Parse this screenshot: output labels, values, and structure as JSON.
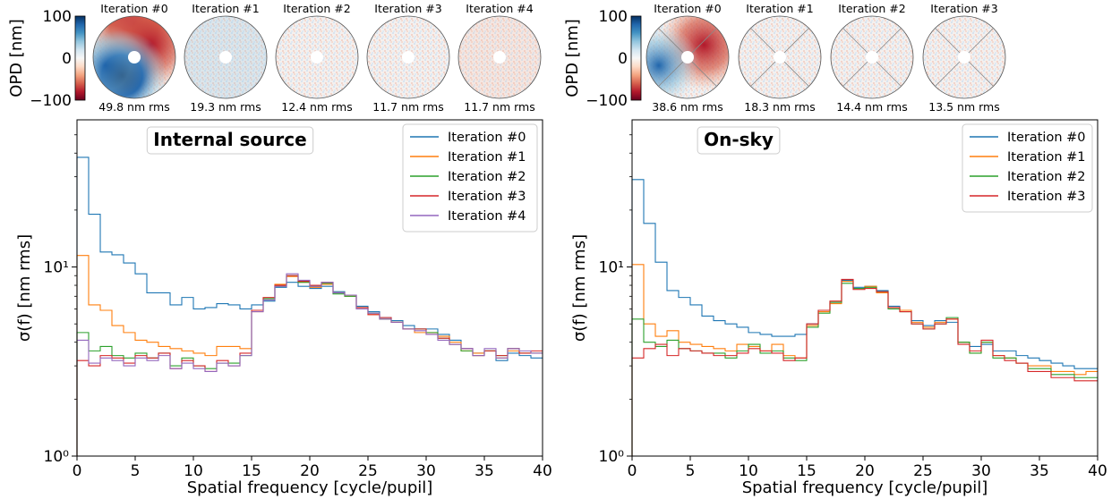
{
  "colors": {
    "series": [
      "#1f77b4",
      "#ff7f0e",
      "#2ca02c",
      "#d62728",
      "#9467bd"
    ],
    "colormap": [
      "#67001f",
      "#b2182b",
      "#d6604d",
      "#f4a582",
      "#fddbc7",
      "#f7f7f7",
      "#d1e5f0",
      "#92c5de",
      "#4393c3",
      "#2166ac",
      "#053061"
    ]
  },
  "panels": [
    {
      "colorbar": {
        "label": "OPD [nm]",
        "ticks": [
          "100",
          "0",
          "−100"
        ]
      },
      "maps": [
        {
          "title": "Iteration #0",
          "rms": "49.8 nm rms"
        },
        {
          "title": "Iteration #1",
          "rms": "19.3 nm rms"
        },
        {
          "title": "Iteration #2",
          "rms": "12.4 nm rms"
        },
        {
          "title": "Iteration #3",
          "rms": "11.7 nm rms"
        },
        {
          "title": "Iteration #4",
          "rms": "11.7 nm rms"
        }
      ]
    },
    {
      "colorbar": {
        "label": "OPD [nm]",
        "ticks": [
          "100",
          "0",
          "−100"
        ]
      },
      "maps": [
        {
          "title": "Iteration #0",
          "rms": "38.6 nm rms"
        },
        {
          "title": "Iteration #1",
          "rms": "18.3 nm rms"
        },
        {
          "title": "Iteration #2",
          "rms": "14.4 nm rms"
        },
        {
          "title": "Iteration #3",
          "rms": "13.5 nm rms"
        }
      ]
    }
  ],
  "chart_data": [
    {
      "type": "line",
      "title": "Internal source",
      "xlabel": "Spatial frequency [cycle/pupil]",
      "ylabel": "σ(f) [nm rms]",
      "xlim": [
        0,
        40
      ],
      "ylim": [
        1,
        60
      ],
      "yscale": "log",
      "xticks": [
        "0",
        "5",
        "10",
        "15",
        "20",
        "25",
        "30",
        "35",
        "40"
      ],
      "yticks": [
        {
          "value": 1,
          "label": "10⁰"
        },
        {
          "value": 10,
          "label": "10¹"
        }
      ],
      "legend_position": "top-right",
      "x": [
        0,
        1,
        2,
        3,
        4,
        5,
        6,
        7,
        8,
        9,
        10,
        11,
        12,
        13,
        14,
        15,
        16,
        17,
        18,
        19,
        20,
        21,
        22,
        23,
        24,
        25,
        26,
        27,
        28,
        29,
        30,
        31,
        32,
        33,
        34,
        35,
        36,
        37,
        38,
        39
      ],
      "series": [
        {
          "name": "Iteration #0",
          "values": [
            38,
            19,
            12,
            11.6,
            10.5,
            9.2,
            7.3,
            7.3,
            6.3,
            6.9,
            6.0,
            6.1,
            6.4,
            6.3,
            6.0,
            6.3,
            6.6,
            7.8,
            8.3,
            7.9,
            7.7,
            7.9,
            7.4,
            7.1,
            6.2,
            5.8,
            5.4,
            5.2,
            4.9,
            4.7,
            4.7,
            4.4,
            4.1,
            3.7,
            3.5,
            3.6,
            3.2,
            3.5,
            3.4,
            3.3
          ]
        },
        {
          "name": "Iteration #1",
          "values": [
            11.5,
            6.3,
            5.9,
            4.9,
            4.5,
            4.1,
            4.0,
            3.8,
            3.7,
            3.6,
            3.5,
            3.4,
            3.8,
            3.8,
            3.7,
            5.8,
            6.8,
            8.1,
            8.9,
            8.3,
            7.8,
            8.1,
            7.3,
            7.0,
            6.0,
            5.6,
            5.3,
            5.1,
            4.7,
            4.5,
            4.5,
            4.3,
            4.0,
            3.6,
            3.5,
            3.6,
            3.3,
            3.6,
            3.5,
            3.5
          ]
        },
        {
          "name": "Iteration #2",
          "values": [
            4.5,
            3.6,
            3.8,
            3.4,
            3.3,
            3.5,
            3.3,
            3.5,
            3.0,
            3.3,
            3.0,
            2.9,
            3.1,
            3.1,
            3.4,
            5.9,
            6.8,
            7.9,
            9.0,
            8.3,
            7.9,
            8.2,
            7.2,
            7.0,
            6.1,
            5.7,
            5.3,
            5.1,
            4.7,
            4.7,
            4.5,
            4.2,
            3.9,
            3.6,
            3.4,
            3.6,
            3.4,
            3.7,
            3.5,
            3.5
          ]
        },
        {
          "name": "Iteration #3",
          "values": [
            3.2,
            3.0,
            3.4,
            3.3,
            3.1,
            3.4,
            3.3,
            3.5,
            2.9,
            3.2,
            3.0,
            2.8,
            3.2,
            3.0,
            3.5,
            5.9,
            6.9,
            8.0,
            9.0,
            8.4,
            8.0,
            8.3,
            7.3,
            7.1,
            6.1,
            5.6,
            5.4,
            5.1,
            4.7,
            4.7,
            4.4,
            4.2,
            3.9,
            3.7,
            3.4,
            3.6,
            3.4,
            3.7,
            3.5,
            3.6
          ]
        },
        {
          "name": "Iteration #4",
          "values": [
            4.1,
            3.1,
            3.3,
            3.2,
            3.0,
            3.3,
            3.2,
            3.4,
            2.9,
            3.1,
            2.9,
            2.8,
            3.1,
            3.0,
            3.4,
            5.8,
            6.7,
            7.9,
            9.2,
            8.5,
            7.9,
            8.3,
            7.3,
            7.1,
            6.0,
            5.7,
            5.3,
            5.1,
            4.7,
            4.6,
            4.4,
            4.1,
            3.9,
            3.7,
            3.4,
            3.7,
            3.3,
            3.7,
            3.6,
            3.5
          ]
        }
      ]
    },
    {
      "type": "line",
      "title": "On-sky",
      "xlabel": "Spatial frequency [cycle/pupil]",
      "ylabel": "σ(f) [nm rms]",
      "xlim": [
        0,
        40
      ],
      "ylim": [
        1,
        60
      ],
      "yscale": "log",
      "xticks": [
        "0",
        "5",
        "10",
        "15",
        "20",
        "25",
        "30",
        "35",
        "40"
      ],
      "yticks": [
        {
          "value": 1,
          "label": "10⁰"
        },
        {
          "value": 10,
          "label": "10¹"
        }
      ],
      "legend_position": "top-right",
      "x": [
        0,
        1,
        2,
        3,
        4,
        5,
        6,
        7,
        8,
        9,
        10,
        11,
        12,
        13,
        14,
        15,
        16,
        17,
        18,
        19,
        20,
        21,
        22,
        23,
        24,
        25,
        26,
        27,
        28,
        29,
        30,
        31,
        32,
        33,
        34,
        35,
        36,
        37,
        38,
        39
      ],
      "series": [
        {
          "name": "Iteration #0",
          "values": [
            29,
            17,
            10.6,
            7.5,
            6.9,
            6.3,
            5.5,
            5.2,
            5.0,
            4.8,
            4.5,
            4.4,
            4.3,
            4.3,
            4.4,
            5.0,
            5.9,
            6.5,
            8.5,
            7.8,
            7.9,
            7.5,
            6.2,
            5.9,
            5.2,
            4.9,
            5.2,
            5.1,
            4.0,
            3.8,
            3.9,
            3.6,
            3.6,
            3.4,
            3.3,
            3.2,
            3.1,
            3.0,
            2.9,
            2.9
          ]
        },
        {
          "name": "Iteration #1",
          "values": [
            10.3,
            5.0,
            4.3,
            4.6,
            4.0,
            3.9,
            3.8,
            3.7,
            3.6,
            3.9,
            3.8,
            3.6,
            3.9,
            3.4,
            3.3,
            4.9,
            5.8,
            6.4,
            8.4,
            7.7,
            7.9,
            7.3,
            6.1,
            5.9,
            5.1,
            4.8,
            5.1,
            5.3,
            4.0,
            3.5,
            4.0,
            3.4,
            3.3,
            3.1,
            3.0,
            3.0,
            2.8,
            2.8,
            2.7,
            2.8
          ]
        },
        {
          "name": "Iteration #2",
          "values": [
            5.3,
            4.0,
            3.8,
            4.1,
            3.7,
            3.6,
            3.5,
            3.5,
            3.3,
            3.6,
            3.9,
            3.5,
            3.6,
            3.3,
            3.2,
            4.8,
            5.7,
            6.5,
            8.2,
            7.7,
            7.8,
            7.4,
            6.0,
            5.8,
            5.0,
            4.7,
            5.0,
            5.4,
            4.0,
            3.5,
            4.0,
            3.3,
            3.3,
            3.1,
            2.9,
            2.9,
            2.7,
            2.7,
            2.6,
            2.6
          ]
        },
        {
          "name": "Iteration #3",
          "values": [
            3.3,
            3.7,
            3.9,
            3.4,
            3.7,
            3.6,
            3.5,
            3.4,
            3.4,
            3.5,
            3.7,
            3.6,
            3.5,
            3.2,
            3.3,
            5.0,
            5.9,
            6.6,
            8.6,
            7.6,
            7.7,
            7.4,
            6.1,
            5.8,
            5.0,
            4.7,
            5.0,
            5.3,
            3.9,
            3.6,
            4.1,
            3.4,
            3.2,
            3.1,
            2.8,
            2.8,
            2.6,
            2.6,
            2.5,
            2.5
          ]
        }
      ]
    }
  ]
}
